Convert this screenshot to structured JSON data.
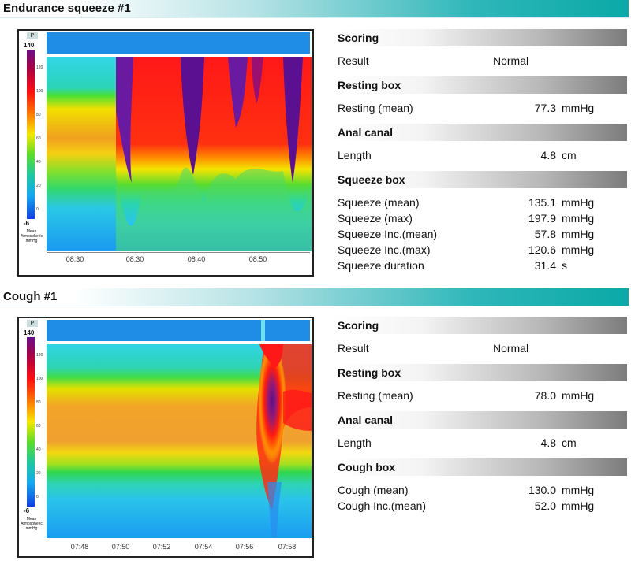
{
  "sections": [
    {
      "title": "Endurance squeeze #1",
      "scale": {
        "p_label": "P",
        "top": "140",
        "bottom": "-6",
        "unit_line1": "Mean",
        "unit_line2": "Atmospheric",
        "unit_line3": "mmHg",
        "ticks": [
          "120",
          "100",
          "80",
          "60",
          "40",
          "20",
          "0"
        ]
      },
      "xticks": [
        "08:30",
        "08:30",
        "08:40",
        "08:50"
      ],
      "panel": {
        "scoring_title": "Scoring",
        "result_label": "Result",
        "result_value": "Normal",
        "resting_title": "Resting box",
        "resting_label": "Resting  (mean)",
        "resting_value": "77.3",
        "resting_unit": "mmHg",
        "canal_title": "Anal canal",
        "length_label": "Length",
        "length_value": "4.8",
        "length_unit": "cm",
        "box_title": "Squeeze box",
        "rows": [
          {
            "label": "Squeeze  (mean)",
            "value": "135.1",
            "unit": "mmHg"
          },
          {
            "label": "Squeeze  (max)",
            "value": "197.9",
            "unit": "mmHg"
          },
          {
            "label": "Squeeze  Inc.(mean)",
            "value": "57.8",
            "unit": "mmHg"
          },
          {
            "label": "Squeeze  Inc.(max)",
            "value": "120.6",
            "unit": "mmHg"
          },
          {
            "label": "Squeeze  duration",
            "value": "31.4",
            "unit": "s"
          }
        ]
      }
    },
    {
      "title": "Cough #1",
      "scale": {
        "p_label": "P",
        "top": "140",
        "bottom": "-6",
        "unit_line1": "Mean",
        "unit_line2": "Atmospheric",
        "unit_line3": "mmHg",
        "ticks": [
          "120",
          "100",
          "80",
          "60",
          "40",
          "20",
          "0"
        ]
      },
      "xticks": [
        "07:48",
        "07:50",
        "07:52",
        "07:54",
        "07:56",
        "07:58"
      ],
      "panel": {
        "scoring_title": "Scoring",
        "result_label": "Result",
        "result_value": "Normal",
        "resting_title": "Resting box",
        "resting_label": "Resting  (mean)",
        "resting_value": "78.0",
        "resting_unit": "mmHg",
        "canal_title": "Anal canal",
        "length_label": "Length",
        "length_value": "4.8",
        "length_unit": "cm",
        "box_title": "Cough box",
        "rows": [
          {
            "label": "Cough  (mean)",
            "value": "130.0",
            "unit": "mmHg"
          },
          {
            "label": "Cough  Inc.(mean)",
            "value": "52.0",
            "unit": "mmHg"
          }
        ]
      }
    }
  ],
  "colors": {
    "banner_accent": "#0aa9a7",
    "strip_blue": "#1f8ce6"
  }
}
